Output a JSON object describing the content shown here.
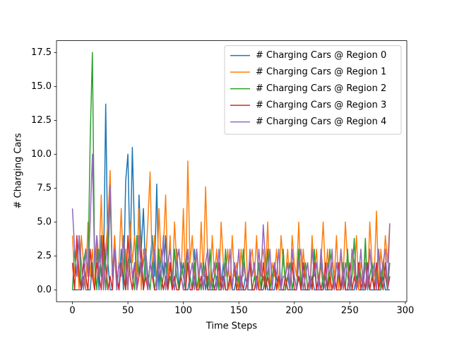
{
  "chart_data": {
    "type": "line",
    "xlabel": "Time Steps",
    "ylabel": "# Charging Cars",
    "x": [
      0,
      2,
      4,
      6,
      8,
      10,
      12,
      14,
      16,
      18,
      20,
      22,
      24,
      26,
      28,
      30,
      32,
      34,
      36,
      38,
      40,
      42,
      44,
      46,
      48,
      50,
      52,
      54,
      56,
      58,
      60,
      62,
      64,
      66,
      68,
      70,
      72,
      74,
      76,
      78,
      80,
      82,
      84,
      86,
      88,
      90,
      92,
      94,
      96,
      98,
      100,
      102,
      104,
      106,
      108,
      110,
      112,
      114,
      116,
      118,
      120,
      122,
      124,
      126,
      128,
      130,
      132,
      134,
      136,
      138,
      140,
      142,
      144,
      146,
      148,
      150,
      152,
      154,
      156,
      158,
      160,
      162,
      164,
      166,
      168,
      170,
      172,
      174,
      176,
      178,
      180,
      182,
      184,
      186,
      188,
      190,
      192,
      194,
      196,
      198,
      200,
      202,
      204,
      206,
      208,
      210,
      212,
      214,
      216,
      218,
      220,
      222,
      224,
      226,
      228,
      230,
      232,
      234,
      236,
      238,
      240,
      242,
      244,
      246,
      248,
      250,
      252,
      254,
      256,
      258,
      260,
      262,
      264,
      266,
      268,
      270,
      272,
      274,
      276,
      278,
      280,
      282,
      284,
      286
    ],
    "series": [
      {
        "name": "# Charging Cars @ Region 0",
        "color": "#1f77b4",
        "values": [
          0,
          0,
          0,
          0,
          0,
          1,
          0,
          0,
          0,
          2,
          0,
          3,
          0,
          4,
          1,
          13.7,
          2,
          0,
          0,
          4,
          1,
          0,
          3,
          0,
          8,
          10,
          2,
          10.5,
          4,
          0,
          7,
          3,
          6,
          1,
          0,
          2,
          4,
          1,
          7.8,
          0,
          3,
          1,
          4,
          0,
          2,
          1,
          0,
          3,
          0,
          1,
          2,
          0,
          0,
          1,
          0,
          3,
          0,
          1,
          0,
          2,
          0,
          1,
          0,
          0,
          0,
          1,
          0,
          0,
          2,
          0,
          0,
          1,
          0,
          0,
          1,
          0,
          0,
          0,
          1,
          0,
          0,
          0,
          0,
          1,
          0,
          0,
          0,
          1,
          0,
          0,
          0,
          0,
          1,
          0,
          0,
          0,
          0,
          1,
          0,
          0,
          0,
          0,
          1,
          0,
          0,
          0,
          0,
          0,
          1,
          0,
          0,
          0,
          0,
          1,
          0,
          0,
          0,
          0,
          1,
          0,
          0,
          0,
          1,
          0,
          0,
          0,
          0,
          0,
          1,
          0,
          0,
          0,
          0,
          1,
          0,
          0,
          0,
          0,
          0,
          0,
          1,
          0,
          0,
          0
        ]
      },
      {
        "name": "# Charging Cars @ Region 1",
        "color": "#ff7f0e",
        "values": [
          4,
          1,
          3,
          0,
          4,
          2,
          0,
          5,
          1,
          3,
          0,
          4,
          2,
          7,
          0,
          3,
          5,
          8.8,
          1,
          4,
          0,
          2,
          6,
          1,
          3,
          0,
          5,
          2,
          4,
          1,
          6,
          0,
          3,
          2,
          5,
          8.7,
          1,
          4,
          0,
          6,
          2,
          3,
          7,
          1,
          4,
          0,
          5,
          2,
          3,
          1,
          6,
          0,
          9.5,
          2,
          4,
          1,
          3,
          0,
          5,
          1,
          7.6,
          2,
          0,
          4,
          1,
          3,
          0,
          5,
          2,
          1,
          3,
          0,
          4,
          1,
          2,
          0,
          3,
          1,
          5,
          0,
          2,
          3,
          1,
          4,
          0,
          2,
          3,
          1,
          5,
          0,
          2,
          1,
          3,
          0,
          4,
          2,
          1,
          3,
          0,
          4,
          2,
          1,
          5,
          0,
          3,
          1,
          2,
          0,
          4,
          1,
          3,
          0,
          2,
          5,
          1,
          3,
          0,
          2,
          1,
          4,
          0,
          3,
          1,
          5,
          2,
          0,
          3,
          1,
          4,
          0,
          2,
          1,
          3,
          0,
          5,
          2,
          1,
          5.8,
          0,
          3,
          1,
          4,
          2,
          4.9
        ]
      },
      {
        "name": "# Charging Cars @ Region 2",
        "color": "#2ca02c",
        "values": [
          0,
          3,
          1,
          4,
          0,
          2,
          3,
          1,
          11,
          17.5,
          2,
          0,
          3,
          1,
          4,
          0,
          2,
          7,
          1,
          3,
          0,
          2,
          1,
          4,
          0,
          2,
          3,
          1,
          0,
          4,
          1,
          2,
          0,
          3,
          1,
          0,
          2,
          0,
          1,
          3,
          0,
          1,
          2,
          0,
          1,
          0,
          3,
          1,
          0,
          2,
          1,
          0,
          3,
          1,
          0,
          2,
          0,
          1,
          0,
          2,
          1,
          0,
          3,
          0,
          1,
          2,
          0,
          1,
          0,
          3,
          0,
          1,
          0,
          2,
          0,
          1,
          0,
          3,
          1,
          0,
          2,
          0,
          1,
          0,
          2,
          0,
          1,
          0,
          3,
          0,
          1,
          2,
          0,
          1,
          0,
          3,
          0,
          1,
          2,
          0,
          1,
          0,
          3,
          0,
          1,
          2,
          0,
          1,
          0,
          3,
          0,
          1,
          2,
          0,
          1,
          0,
          3,
          1,
          0,
          2,
          1,
          0,
          2,
          0,
          3,
          0,
          1,
          3.8,
          0,
          2,
          1,
          0,
          3.8,
          0,
          1,
          2,
          0,
          1,
          3,
          0,
          2,
          1,
          0,
          2
        ]
      },
      {
        "name": "# Charging Cars @ Region 3",
        "color": "#d62728",
        "values": [
          2,
          0,
          4,
          1,
          0,
          2,
          1,
          0,
          3,
          1,
          0,
          2,
          1,
          0,
          4,
          2,
          0,
          1,
          0,
          3,
          1,
          0,
          2,
          1,
          0,
          4,
          1,
          0,
          2,
          0,
          1,
          3,
          0,
          1,
          0,
          2,
          1,
          0,
          0,
          2,
          1,
          0,
          1,
          0,
          2,
          0,
          1,
          0,
          0,
          1,
          0,
          0,
          2,
          0,
          0,
          1,
          0,
          0,
          1,
          0,
          2,
          0,
          0,
          1,
          0,
          0,
          2,
          0,
          1,
          0,
          0,
          1,
          0,
          2,
          0,
          0,
          1,
          0,
          0,
          1,
          2,
          0,
          0,
          1,
          0,
          0,
          2,
          0,
          1,
          0,
          0,
          2,
          0,
          1,
          0,
          0,
          1,
          0,
          0,
          2,
          0,
          0,
          1,
          0,
          2,
          0,
          0,
          1,
          0,
          2,
          0,
          1,
          0,
          0,
          2,
          0,
          1,
          0,
          1,
          0,
          2,
          0,
          1,
          0,
          0,
          2,
          0,
          1,
          0,
          2,
          0,
          1,
          0,
          2,
          0,
          1,
          0,
          2,
          0,
          1,
          0,
          2,
          0,
          1
        ]
      },
      {
        "name": "# Charging Cars @ Region 4",
        "color": "#9467bd",
        "values": [
          6,
          3,
          1,
          4,
          2,
          0,
          3,
          1,
          5,
          10,
          2,
          4,
          1,
          3,
          0,
          2,
          4,
          7.7,
          1,
          3,
          0,
          2,
          1,
          4,
          2,
          0,
          3,
          1,
          2,
          0,
          4,
          1,
          2,
          3,
          0,
          2,
          1,
          3,
          0,
          2,
          1,
          4,
          0,
          2,
          3,
          1,
          0,
          2,
          3,
          1,
          0,
          2,
          3,
          1,
          2,
          0,
          3,
          1,
          2,
          0,
          2,
          3,
          0,
          1,
          2,
          0,
          3,
          1,
          0,
          2,
          1,
          3,
          0,
          2,
          1,
          3,
          0,
          2,
          1,
          0,
          3,
          1,
          2,
          0,
          3,
          1,
          4.8,
          2,
          1,
          3,
          0,
          2,
          1,
          3,
          0,
          1,
          1,
          2,
          0,
          3,
          1,
          0,
          2,
          3,
          0,
          1,
          2,
          0,
          3,
          1,
          2,
          0,
          3,
          1,
          0,
          2,
          1,
          3,
          0,
          2,
          1,
          3,
          0,
          2,
          1,
          0,
          3,
          2,
          0,
          1,
          3,
          0,
          2,
          0,
          3,
          1,
          2,
          0,
          3,
          1,
          2,
          3,
          0,
          4.9
        ]
      }
    ],
    "xlim": [
      -14.35,
      301.35
    ],
    "xticks": [
      0,
      50,
      100,
      150,
      200,
      250,
      300
    ],
    "ylim": [
      -0.875,
      18.375
    ],
    "yticks": [
      {
        "value": 0,
        "label": "0.0"
      },
      {
        "value": 2.5,
        "label": "2.5"
      },
      {
        "value": 5,
        "label": "5.0"
      },
      {
        "value": 7.5,
        "label": "7.5"
      },
      {
        "value": 10,
        "label": "10.0"
      },
      {
        "value": 12.5,
        "label": "12.5"
      },
      {
        "value": 15,
        "label": "15.0"
      },
      {
        "value": 17.5,
        "label": "17.5"
      }
    ],
    "grid": false,
    "legend": "upper right"
  }
}
